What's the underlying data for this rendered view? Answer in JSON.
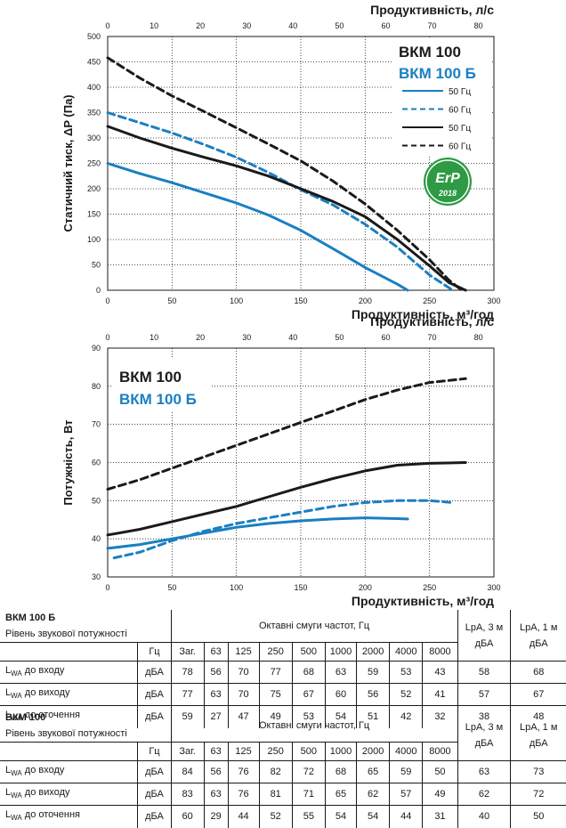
{
  "chart_data": [
    {
      "type": "line",
      "title": "",
      "xlabel": "Продуктивність, м³/год",
      "ylabel": "Статичний тиск, ΔP (Па)",
      "x2label": "Продуктивність, л/с",
      "xlim": [
        0,
        300
      ],
      "ylim": [
        0,
        500
      ],
      "x2lim": [
        0,
        80
      ],
      "xticks": [
        "0",
        "50",
        "100",
        "150",
        "200",
        "250",
        "300"
      ],
      "yticks": [
        "0",
        "50",
        "100",
        "150",
        "200",
        "250",
        "300",
        "350",
        "400",
        "450",
        "500"
      ],
      "x2ticks": [
        "0",
        "10",
        "20",
        "30",
        "40",
        "50",
        "60",
        "70",
        "80"
      ],
      "grid": true,
      "legend_titles": [
        "ВКМ 100",
        "ВКМ 100 Б"
      ],
      "legend": [
        "50 Гц",
        "60 Гц",
        "50 Гц",
        "60 Гц"
      ],
      "badge": [
        "ErP",
        "2018"
      ],
      "series": [
        {
          "name": "50 Гц",
          "model": "ВКМ 100 Б",
          "color": "#1a7fc1",
          "dash": false,
          "x": [
            0,
            25,
            50,
            75,
            100,
            125,
            150,
            175,
            200,
            225,
            233
          ],
          "y": [
            250,
            230,
            212,
            192,
            172,
            148,
            118,
            82,
            45,
            12,
            0
          ]
        },
        {
          "name": "60 Гц",
          "model": "ВКМ 100 Б",
          "color": "#1a7fc1",
          "dash": true,
          "x": [
            0,
            25,
            50,
            75,
            100,
            125,
            150,
            175,
            200,
            225,
            250,
            268
          ],
          "y": [
            350,
            330,
            310,
            287,
            262,
            232,
            198,
            168,
            130,
            85,
            30,
            0
          ]
        },
        {
          "name": "50 Гц",
          "model": "ВКМ 100",
          "color": "#1a1a1a",
          "dash": false,
          "x": [
            0,
            25,
            50,
            75,
            100,
            125,
            150,
            175,
            200,
            225,
            250,
            265,
            278
          ],
          "y": [
            323,
            300,
            280,
            262,
            245,
            225,
            200,
            175,
            145,
            100,
            48,
            15,
            0
          ]
        },
        {
          "name": "60 Гц",
          "model": "ВКМ 100",
          "color": "#1a1a1a",
          "dash": true,
          "x": [
            0,
            25,
            50,
            75,
            100,
            125,
            150,
            175,
            200,
            225,
            250,
            265,
            275
          ],
          "y": [
            458,
            418,
            383,
            352,
            320,
            288,
            255,
            215,
            170,
            118,
            60,
            20,
            0
          ]
        }
      ]
    },
    {
      "type": "line",
      "title": "",
      "xlabel": "Продуктивність, м³/год",
      "ylabel": "Потужність, Вт",
      "x2label": "Продуктивність, л/с",
      "xlim": [
        0,
        300
      ],
      "ylim": [
        30,
        90
      ],
      "x2lim": [
        0,
        80
      ],
      "xticks": [
        "0",
        "50",
        "100",
        "150",
        "200",
        "250",
        "300"
      ],
      "yticks": [
        "30",
        "40",
        "50",
        "60",
        "70",
        "80",
        "90"
      ],
      "x2ticks": [
        "0",
        "10",
        "20",
        "30",
        "40",
        "50",
        "60",
        "70",
        "80"
      ],
      "grid": true,
      "legend_titles": [
        "ВКМ 100",
        "ВКМ 100 Б"
      ],
      "series": [
        {
          "model": "ВКМ 100 Б",
          "color": "#1a7fc1",
          "dash": false,
          "x": [
            0,
            25,
            50,
            75,
            100,
            125,
            150,
            175,
            200,
            225,
            233
          ],
          "y": [
            37.5,
            38.5,
            40,
            41.5,
            43,
            44,
            44.7,
            45.2,
            45.5,
            45.3,
            45.2
          ]
        },
        {
          "model": "ВКМ 100 Б",
          "color": "#1a7fc1",
          "dash": true,
          "x": [
            5,
            25,
            50,
            75,
            100,
            125,
            150,
            175,
            200,
            225,
            250,
            268
          ],
          "y": [
            35,
            36.5,
            39.5,
            42,
            44,
            45.5,
            47,
            48.5,
            49.5,
            50,
            50,
            49.5
          ]
        },
        {
          "model": "ВКМ 100",
          "color": "#1a1a1a",
          "dash": false,
          "x": [
            0,
            25,
            50,
            75,
            100,
            125,
            150,
            175,
            200,
            225,
            250,
            278
          ],
          "y": [
            41,
            42.5,
            44.5,
            46.5,
            48.5,
            51,
            53.5,
            55.8,
            57.8,
            59.3,
            59.8,
            60
          ]
        },
        {
          "model": "ВКМ 100",
          "color": "#1a1a1a",
          "dash": true,
          "x": [
            0,
            25,
            50,
            75,
            100,
            125,
            150,
            175,
            200,
            225,
            250,
            278
          ],
          "y": [
            53,
            55.5,
            58.5,
            61.5,
            64.5,
            67.5,
            70.5,
            73.5,
            76.5,
            79,
            81,
            82
          ]
        }
      ]
    }
  ],
  "tables": [
    {
      "model": "ВКМ 100 Б",
      "subtitle": "Рівень звукової потужності",
      "band_title": "Октавні смуги частот, Гц",
      "lpa3": "LpA, 3 м дБА",
      "lpa1": "LpA, 1 м дБА",
      "hz": "Гц",
      "bands": [
        "Заг.",
        "63",
        "125",
        "250",
        "500",
        "1000",
        "2000",
        "4000",
        "8000"
      ],
      "rows": [
        {
          "main": "L",
          "sub": "WA",
          "rest": " до входу",
          "unit": "дБА",
          "values": [
            "78",
            "56",
            "70",
            "77",
            "68",
            "63",
            "59",
            "53",
            "43"
          ],
          "lpa3": "58",
          "lpa1": "68"
        },
        {
          "main": "L",
          "sub": "WA",
          "rest": " до виходу",
          "unit": "дБА",
          "values": [
            "77",
            "63",
            "70",
            "75",
            "67",
            "60",
            "56",
            "52",
            "41"
          ],
          "lpa3": "57",
          "lpa1": "67"
        },
        {
          "main": "L",
          "sub": "WA",
          "rest": " до оточення",
          "unit": "дБА",
          "values": [
            "59",
            "27",
            "47",
            "49",
            "53",
            "54",
            "51",
            "42",
            "32"
          ],
          "lpa3": "38",
          "lpa1": "48"
        }
      ]
    },
    {
      "model": "ВКМ 100",
      "subtitle": "Рівень звукової потужності",
      "band_title": "Октавні смуги частот, Гц",
      "lpa3": "LpA, 3 м дБА",
      "lpa1": "LpA, 1 м дБА",
      "hz": "Гц",
      "bands": [
        "Заг.",
        "63",
        "125",
        "250",
        "500",
        "1000",
        "2000",
        "4000",
        "8000"
      ],
      "rows": [
        {
          "main": "L",
          "sub": "WA",
          "rest": " до входу",
          "unit": "дБА",
          "values": [
            "84",
            "56",
            "76",
            "82",
            "72",
            "68",
            "65",
            "59",
            "50"
          ],
          "lpa3": "63",
          "lpa1": "73"
        },
        {
          "main": "L",
          "sub": "WA",
          "rest": " до виходу",
          "unit": "дБА",
          "values": [
            "83",
            "63",
            "76",
            "81",
            "71",
            "65",
            "62",
            "57",
            "49"
          ],
          "lpa3": "62",
          "lpa1": "72"
        },
        {
          "main": "L",
          "sub": "WA",
          "rest": " до оточення",
          "unit": "дБА",
          "values": [
            "60",
            "29",
            "44",
            "52",
            "55",
            "54",
            "54",
            "44",
            "31"
          ],
          "lpa3": "40",
          "lpa1": "50"
        }
      ]
    }
  ],
  "colors": {
    "blue": "#1a7fc1",
    "black": "#1a1a1a",
    "grid": "#1a1a1a",
    "erp_green": "#2e9a44"
  }
}
